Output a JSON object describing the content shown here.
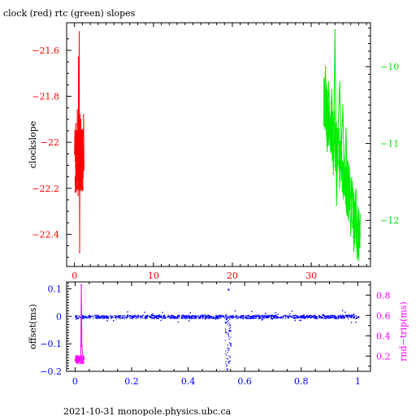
{
  "title": "clock (red) rtc (green) slopes",
  "footer": "2021-10-31  monopole.physics.ubc.ca",
  "colors": {
    "red": "#ff0000",
    "green": "#00ee00",
    "blue": "#0000ff",
    "magenta": "#ff00ff",
    "axis": "#000000"
  },
  "chart_data": [
    {
      "type": "line",
      "title": "clock (red) rtc (green) slopes",
      "ylabel": "clockslope",
      "xlim": [
        -1,
        37.5
      ],
      "ylim": [
        -22.54,
        -21.48
      ],
      "y2lim": [
        -12.6,
        -9.43
      ],
      "x_ticks": [
        0,
        10,
        20,
        30
      ],
      "y_ticks": [
        -21.6,
        -21.8,
        -22,
        -22.2,
        -22.4
      ],
      "y_tick_labels": [
        "−21.6",
        "−21.8",
        "−22",
        "−22.2",
        "−22.4"
      ],
      "y2_ticks": [
        -10,
        -11,
        -12
      ],
      "y2_tick_labels": [
        "−10",
        "−11",
        "−12"
      ],
      "series": [
        {
          "name": "clock",
          "axis": "left",
          "color": "red",
          "x": [
            0.0,
            0.05,
            0.1,
            0.15,
            0.2,
            0.25,
            0.3,
            0.35,
            0.4,
            0.45,
            0.5,
            0.55,
            0.6,
            0.65,
            0.7,
            0.75,
            0.8,
            0.85,
            0.9,
            0.95,
            1.0,
            1.05,
            1.1,
            1.15,
            1.2
          ],
          "y": [
            -22.05,
            -21.95,
            -22.08,
            -21.92,
            -22.12,
            -21.98,
            -22.2,
            -21.86,
            -22.1,
            -22.23,
            -21.63,
            -22.02,
            -21.52,
            -22.48,
            -21.88,
            -22.16,
            -21.9,
            -22.1,
            -21.95,
            -22.18,
            -21.99,
            -22.05,
            -22.15,
            -21.88,
            -22.12
          ]
        },
        {
          "name": "rtc",
          "axis": "right",
          "color": "green",
          "x": [
            31.6,
            31.8,
            32.0,
            32.2,
            32.4,
            32.6,
            32.8,
            33.0,
            33.2,
            33.4,
            33.6,
            33.8,
            34.0,
            34.2,
            34.4,
            34.6,
            34.8,
            35.0,
            35.2,
            35.4,
            35.6,
            35.8,
            36.0,
            36.2
          ],
          "y": [
            -10.6,
            -10.0,
            -11.1,
            -10.2,
            -10.9,
            -10.3,
            -11.4,
            -9.52,
            -11.8,
            -10.8,
            -10.2,
            -11.1,
            -10.5,
            -11.6,
            -10.8,
            -11.9,
            -11.3,
            -12.2,
            -11.5,
            -12.4,
            -11.8,
            -12.5,
            -11.9,
            -12.2
          ]
        }
      ]
    },
    {
      "type": "scatter",
      "ylabel": "offset(ms)",
      "y2label": "rnd−trip(ms)",
      "xlim": [
        -0.03,
        1.045
      ],
      "ylim": [
        -0.2,
        0.125
      ],
      "y2lim": [
        0.05,
        0.93
      ],
      "x_ticks": [
        0,
        0.2,
        0.4,
        0.6,
        0.8,
        1
      ],
      "x_tick_labels": [
        "0",
        "0.2",
        "0.4",
        "0.6",
        "0.8",
        "1"
      ],
      "y_ticks": [
        0.1,
        0,
        -0.1,
        -0.2
      ],
      "y_tick_labels": [
        "0.1",
        "0",
        "−0.1",
        "−0.2"
      ],
      "y2_ticks": [
        0.8,
        0.6,
        0.4,
        0.2
      ],
      "y2_tick_labels": [
        "0.8",
        "0.6",
        "0.4",
        "0.2"
      ],
      "series": [
        {
          "name": "offset",
          "axis": "left",
          "color": "blue",
          "x": [
            0.0,
            0.05,
            0.1,
            0.15,
            0.2,
            0.25,
            0.3,
            0.35,
            0.4,
            0.45,
            0.5,
            0.53,
            0.535,
            0.54,
            0.545,
            0.55,
            0.6,
            0.65,
            0.7,
            0.75,
            0.8,
            0.85,
            0.9,
            0.95,
            1.0
          ],
          "y": [
            0.0,
            0.002,
            -0.001,
            0.001,
            0.0,
            -0.002,
            0.001,
            0.0,
            -0.001,
            0.002,
            0.0,
            -0.02,
            -0.19,
            0.1,
            -0.05,
            0.001,
            0.0,
            -0.002,
            0.001,
            0.0,
            -0.001,
            0.001,
            0.0,
            -0.002,
            0.0
          ]
        },
        {
          "name": "rnd-trip",
          "axis": "right",
          "color": "magenta",
          "x": [
            0.0,
            0.004,
            0.008,
            0.012,
            0.016,
            0.02,
            0.022,
            0.024,
            0.028
          ],
          "y": [
            0.16,
            0.2,
            0.14,
            0.18,
            0.15,
            0.19,
            0.9,
            0.3,
            0.17
          ]
        }
      ]
    }
  ]
}
